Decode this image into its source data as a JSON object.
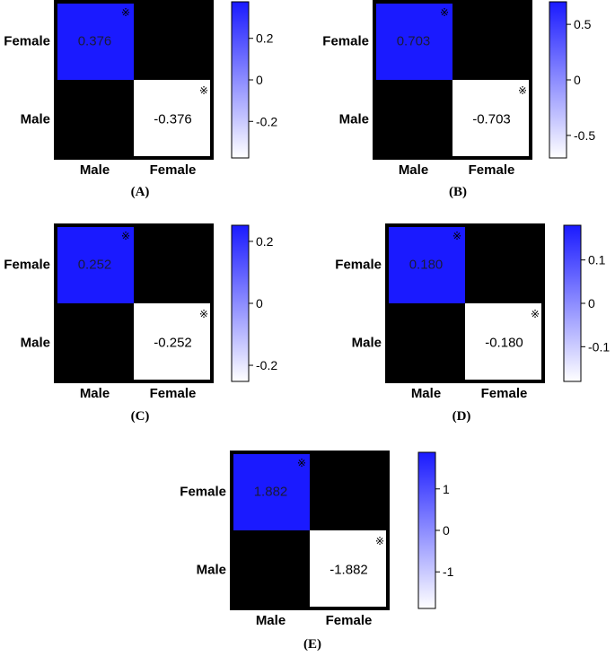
{
  "colors": {
    "positive": "#1a1aff",
    "negative": "#ffffff",
    "zero": "#000000",
    "frame": "#000000"
  },
  "chart_data": [
    {
      "type": "heatmap",
      "panel_label": "(A)",
      "x_categories": [
        "Male",
        "Female"
      ],
      "y_categories": [
        "Female",
        "Male"
      ],
      "matrix": [
        [
          0.376,
          0
        ],
        [
          0,
          -0.376
        ]
      ],
      "cell_labels": [
        [
          "0.376",
          ""
        ],
        [
          "",
          "-0.376"
        ]
      ],
      "significant": [
        [
          true,
          false
        ],
        [
          false,
          true
        ]
      ],
      "significance_marker": "※",
      "colorbar": {
        "min": -0.376,
        "max": 0.376,
        "ticks": [
          0.2,
          0,
          -0.2
        ],
        "tick_labels": [
          "0.2",
          "0",
          "-0.2"
        ],
        "colors": [
          "#ffffff",
          "#1a1aff"
        ]
      }
    },
    {
      "type": "heatmap",
      "panel_label": "(B)",
      "x_categories": [
        "Male",
        "Female"
      ],
      "y_categories": [
        "Female",
        "Male"
      ],
      "matrix": [
        [
          0.703,
          0
        ],
        [
          0,
          -0.703
        ]
      ],
      "cell_labels": [
        [
          "0.703",
          ""
        ],
        [
          "",
          "-0.703"
        ]
      ],
      "significant": [
        [
          true,
          false
        ],
        [
          false,
          true
        ]
      ],
      "significance_marker": "※",
      "colorbar": {
        "min": -0.703,
        "max": 0.703,
        "ticks": [
          0.5,
          0,
          -0.5
        ],
        "tick_labels": [
          "0.5",
          "0",
          "-0.5"
        ],
        "colors": [
          "#ffffff",
          "#1a1aff"
        ]
      }
    },
    {
      "type": "heatmap",
      "panel_label": "(C)",
      "x_categories": [
        "Male",
        "Female"
      ],
      "y_categories": [
        "Female",
        "Male"
      ],
      "matrix": [
        [
          0.252,
          0
        ],
        [
          0,
          -0.252
        ]
      ],
      "cell_labels": [
        [
          "0.252",
          ""
        ],
        [
          "",
          "-0.252"
        ]
      ],
      "significant": [
        [
          true,
          false
        ],
        [
          false,
          true
        ]
      ],
      "significance_marker": "※",
      "colorbar": {
        "min": -0.252,
        "max": 0.252,
        "ticks": [
          0.2,
          0,
          -0.2
        ],
        "tick_labels": [
          "0.2",
          "0",
          "-0.2"
        ],
        "colors": [
          "#ffffff",
          "#1a1aff"
        ]
      }
    },
    {
      "type": "heatmap",
      "panel_label": "(D)",
      "x_categories": [
        "Male",
        "Female"
      ],
      "y_categories": [
        "Female",
        "Male"
      ],
      "matrix": [
        [
          0.18,
          0
        ],
        [
          0,
          -0.18
        ]
      ],
      "cell_labels": [
        [
          "0.180",
          ""
        ],
        [
          "",
          "-0.180"
        ]
      ],
      "significant": [
        [
          true,
          false
        ],
        [
          false,
          true
        ]
      ],
      "significance_marker": "※",
      "colorbar": {
        "min": -0.18,
        "max": 0.18,
        "ticks": [
          0.1,
          0,
          -0.1
        ],
        "tick_labels": [
          "0.1",
          "0",
          "-0.1"
        ],
        "colors": [
          "#ffffff",
          "#1a1aff"
        ]
      }
    },
    {
      "type": "heatmap",
      "panel_label": "(E)",
      "x_categories": [
        "Male",
        "Female"
      ],
      "y_categories": [
        "Female",
        "Male"
      ],
      "matrix": [
        [
          1.882,
          0
        ],
        [
          0,
          -1.882
        ]
      ],
      "cell_labels": [
        [
          "1.882",
          ""
        ],
        [
          "",
          "-1.882"
        ]
      ],
      "significant": [
        [
          true,
          false
        ],
        [
          false,
          true
        ]
      ],
      "significance_marker": "※",
      "colorbar": {
        "min": -1.882,
        "max": 1.882,
        "ticks": [
          1,
          0,
          -1
        ],
        "tick_labels": [
          "1",
          "0",
          "-1"
        ],
        "colors": [
          "#ffffff",
          "#1a1aff"
        ]
      }
    }
  ]
}
